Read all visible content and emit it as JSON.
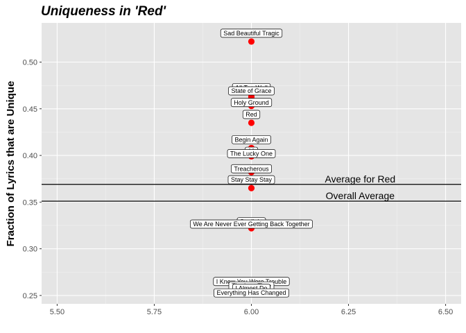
{
  "chart_data": {
    "type": "scatter",
    "title": "Uniqueness in 'Red'",
    "xlabel": "",
    "ylabel": "Fraction of Lyrics that are Unique",
    "xlim": [
      5.46,
      6.54
    ],
    "ylim": [
      0.241,
      0.542
    ],
    "x_ticks": [
      "5.50",
      "5.75",
      "6.00",
      "6.25",
      "6.50"
    ],
    "y_ticks": [
      "0.25",
      "0.30",
      "0.35",
      "0.40",
      "0.45",
      "0.50"
    ],
    "grid": true,
    "points": [
      {
        "label": "Sad Beautiful Tragic",
        "x": 6.0,
        "y": 0.522
      },
      {
        "label": "All Too Well",
        "x": 6.0,
        "y": 0.463
      },
      {
        "label": "State of Grace",
        "x": 6.0,
        "y": 0.461
      },
      {
        "label": "Holy Ground",
        "x": 6.0,
        "y": 0.453
      },
      {
        "label": "Red",
        "x": 6.0,
        "y": 0.435
      },
      {
        "label": "Begin Again",
        "x": 6.0,
        "y": 0.408
      },
      {
        "label": "22",
        "x": 6.0,
        "y": 0.4
      },
      {
        "label": "The Lucky One",
        "x": 6.0,
        "y": 0.399
      },
      {
        "label": "Treacherous",
        "x": 6.0,
        "y": 0.382
      },
      {
        "label": "Stay Stay Stay",
        "x": 6.0,
        "y": 0.365
      },
      {
        "label": "Starlight",
        "x": 6.0,
        "y": 0.323
      },
      {
        "label": "We Are Never Ever Getting Back Together",
        "x": 6.0,
        "y": 0.322
      },
      {
        "label": "I Knew You Were Trouble",
        "x": 6.0,
        "y": 0.259
      },
      {
        "label": "The Last Time",
        "x": 6.0,
        "y": 0.255
      },
      {
        "label": "I Almost Do",
        "x": 6.0,
        "y": 0.254
      },
      {
        "label": "Everything Has Changed",
        "x": 6.0,
        "y": 0.252
      }
    ],
    "hlines": [
      {
        "label": "Average for Red",
        "y": 0.369
      },
      {
        "label": "Overall Average",
        "y": 0.351
      }
    ],
    "colors": {
      "point": "#ff0000",
      "panel": "#e5e5e5",
      "grid_major": "#ffffff",
      "line": "#000000"
    }
  }
}
